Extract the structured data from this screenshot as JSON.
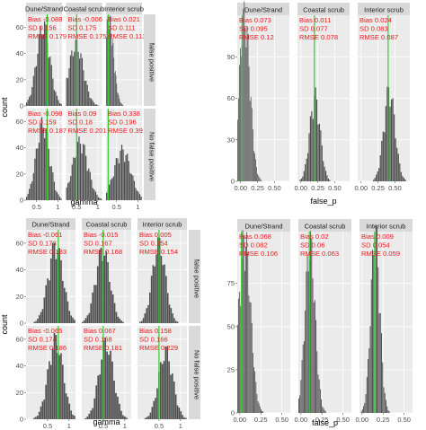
{
  "chart_data": [
    {
      "type": "histogram",
      "xlabel": "gamma",
      "ylabel": "count",
      "x_ticks": [
        0.5,
        1.0
      ],
      "y_ticks": [
        0,
        20,
        40,
        60
      ],
      "ylim": [
        0,
        70
      ],
      "xlim": [
        0.25,
        1.1
      ],
      "columns": [
        "Dune/Strand",
        "Coastal scrub",
        "Interior scrub"
      ],
      "rows": [
        "false positive",
        "No false positive"
      ],
      "facets": [
        {
          "row": "false positive",
          "col": "Dune/Strand",
          "Bias": "-0.088",
          "SD": "0.156",
          "RMSE": "0.179",
          "true_value": 0.75,
          "center": 0.66,
          "spread": 0.156,
          "peak": 58
        },
        {
          "row": "false positive",
          "col": "Coastal scrub",
          "Bias": "-0.006",
          "SD": "0.175",
          "RMSE": "0.175",
          "true_value": 0.5,
          "center": 0.49,
          "spread": 0.175,
          "peak": 44
        },
        {
          "row": "false positive",
          "col": "Interior scrub",
          "Bias": "0.021",
          "SD": "0.111",
          "RMSE": "0.113",
          "true_value": 0.3,
          "center": 0.32,
          "spread": 0.111,
          "peak": 62
        },
        {
          "row": "No false positive",
          "col": "Dune/Strand",
          "Bias": "-0.098",
          "SD": "0.159",
          "RMSE": "0.187",
          "true_value": 0.75,
          "center": 0.65,
          "spread": 0.159,
          "peak": 55
        },
        {
          "row": "No false positive",
          "col": "Coastal scrub",
          "Bias": "0.09",
          "SD": "0.18",
          "RMSE": "0.201",
          "true_value": 0.5,
          "center": 0.59,
          "spread": 0.18,
          "peak": 42
        },
        {
          "row": "No false positive",
          "col": "Interior scrub",
          "Bias": "0.338",
          "SD": "0.196",
          "RMSE": "0.391",
          "true_value": 0.3,
          "center": 0.64,
          "spread": 0.196,
          "peak": 36
        }
      ]
    },
    {
      "type": "histogram",
      "xlabel": "false_p",
      "ylabel": "",
      "x_ticks": [
        "0.00",
        "0.25",
        "0.50"
      ],
      "x_tick_values": [
        0.0,
        0.25,
        0.5
      ],
      "y_ticks": [
        0,
        30,
        60,
        90
      ],
      "ylim": [
        0,
        120
      ],
      "xlim": [
        -0.05,
        0.72
      ],
      "columns": [
        "Dune/Strand",
        "Coastal scrub",
        "Interior scrub"
      ],
      "rows": [],
      "facets": [
        {
          "col": "Dune/Strand",
          "Bias": "0.073",
          "SD": "0.095",
          "RMSE": "0.12",
          "true_value": 0.02,
          "center": 0.06,
          "spread": 0.08,
          "peak": 112
        },
        {
          "col": "Coastal scrub",
          "Bias": "0.011",
          "SD": "0.077",
          "RMSE": "0.078",
          "true_value": 0.2,
          "center": 0.21,
          "spread": 0.077,
          "peak": 58
        },
        {
          "col": "Interior scrub",
          "Bias": "0.024",
          "SD": "0.083",
          "RMSE": "0.087",
          "true_value": 0.4,
          "center": 0.42,
          "spread": 0.083,
          "peak": 62
        }
      ]
    },
    {
      "type": "histogram",
      "xlabel": "gamma",
      "ylabel": "count",
      "x_ticks": [
        0.5,
        1.0
      ],
      "y_ticks": [
        0,
        20,
        40,
        60
      ],
      "ylim": [
        0,
        70
      ],
      "xlim": [
        0.0,
        1.15
      ],
      "columns": [
        "Dune/Strand",
        "Coastal scrub",
        "Interior scrub"
      ],
      "rows": [
        "false positive",
        "No false positive"
      ],
      "facets": [
        {
          "row": "false positive",
          "col": "Dune/Strand",
          "Bias": "-0.061",
          "SD": "0.173",
          "RMSE": "0.183",
          "true_value": 0.75,
          "center": 0.69,
          "spread": 0.173,
          "peak": 55
        },
        {
          "row": "false positive",
          "col": "Coastal scrub",
          "Bias": "-0.015",
          "SD": "0.167",
          "RMSE": "0.168",
          "true_value": 0.5,
          "center": 0.49,
          "spread": 0.167,
          "peak": 52
        },
        {
          "row": "false positive",
          "col": "Interior scrub",
          "Bias": "0.005",
          "SD": "0.154",
          "RMSE": "0.154",
          "true_value": 0.5,
          "center": 0.5,
          "spread": 0.154,
          "peak": 56
        },
        {
          "row": "No false positive",
          "col": "Dune/Strand",
          "Bias": "-0.065",
          "SD": "0.174",
          "RMSE": "0.186",
          "true_value": 0.75,
          "center": 0.69,
          "spread": 0.174,
          "peak": 56
        },
        {
          "row": "No false positive",
          "col": "Coastal scrub",
          "Bias": "0.067",
          "SD": "0.168",
          "RMSE": "0.181",
          "true_value": 0.5,
          "center": 0.57,
          "spread": 0.168,
          "peak": 54
        },
        {
          "row": "No false positive",
          "col": "Interior scrub",
          "Bias": "0.158",
          "SD": "0.166",
          "RMSE": "0.229",
          "true_value": 0.5,
          "center": 0.66,
          "spread": 0.166,
          "peak": 48
        }
      ]
    },
    {
      "type": "histogram",
      "xlabel": "false_p",
      "ylabel": "",
      "x_ticks": [
        "0.00",
        "0.25",
        "0.50"
      ],
      "x_tick_values": [
        0.0,
        0.25,
        0.5
      ],
      "y_ticks": [
        0,
        25,
        50,
        75
      ],
      "ylim": [
        0,
        105
      ],
      "xlim": [
        -0.03,
        0.6
      ],
      "columns": [
        "Dune/Strand",
        "Coastal scrub",
        "Interior scrub"
      ],
      "rows": [],
      "facets": [
        {
          "col": "Dune/Strand",
          "Bias": "0.068",
          "SD": "0.082",
          "RMSE": "0.106",
          "true_value": 0.02,
          "center": 0.06,
          "spread": 0.07,
          "peak": 95
        },
        {
          "col": "Coastal scrub",
          "Bias": "0.02",
          "SD": "0.06",
          "RMSE": "0.063",
          "true_value": 0.1,
          "center": 0.11,
          "spread": 0.06,
          "peak": 92
        },
        {
          "col": "Interior scrub",
          "Bias": "0.009",
          "SD": "0.054",
          "RMSE": "0.059",
          "true_value": 0.15,
          "center": 0.16,
          "spread": 0.054,
          "peak": 98
        }
      ]
    }
  ]
}
